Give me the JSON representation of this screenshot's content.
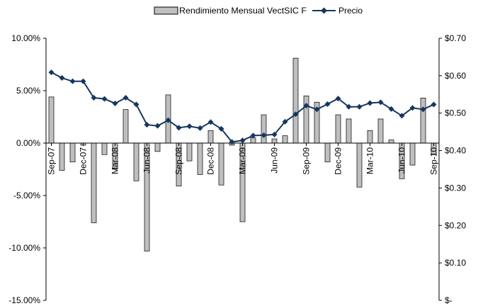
{
  "chart_data": {
    "type": "bar",
    "legend_position": "top",
    "grid": false,
    "categories": [
      "Sep-07",
      "Oct-07",
      "Nov-07",
      "Dec-07",
      "Jan-08",
      "Feb-08",
      "Mar-08",
      "Apr-08",
      "May-08",
      "Jun-08",
      "Jul-08",
      "Aug-08",
      "Sep-08",
      "Oct-08",
      "Nov-08",
      "Dec-08",
      "Jan-09",
      "Feb-09",
      "Mar-09",
      "Apr-09",
      "May-09",
      "Jun-09",
      "Jul-09",
      "Aug-09",
      "Sep-09",
      "Oct-09",
      "Nov-09",
      "Dec-09",
      "Jan-10",
      "Feb-10",
      "Mar-10",
      "Apr-10",
      "May-10",
      "Jun-10",
      "Jul-10",
      "Aug-10",
      "Sep-10"
    ],
    "x_tick_labels": [
      "Sep-07",
      "Dec-07",
      "Mar-08",
      "Jun-08",
      "Sep-08",
      "Dec-08",
      "Mar-09",
      "Jun-09",
      "Sep-09",
      "Dec-09",
      "Mar-10",
      "Jun-10",
      "Sep-10"
    ],
    "series": [
      {
        "name": "Rendimiento Mensual VectSIC F",
        "kind": "bar",
        "axis": "left",
        "color": "#bfbfbf",
        "values": [
          4.4,
          -2.6,
          -1.8,
          -0.2,
          -7.6,
          -1.1,
          -2.5,
          3.2,
          -3.6,
          -10.3,
          -0.8,
          4.6,
          -4.1,
          -1.7,
          -3.0,
          1.2,
          -4.0,
          -0.2,
          -7.5,
          0.5,
          2.7,
          0.4,
          0.7,
          8.1,
          4.5,
          3.9,
          -1.8,
          2.7,
          2.3,
          -4.2,
          1.2,
          2.3,
          0.3,
          -3.4,
          -2.1,
          4.3,
          -1.1
        ]
      },
      {
        "name": "Precio",
        "kind": "line",
        "axis": "right",
        "color": "#17375e",
        "values": [
          0.609,
          0.594,
          0.585,
          0.585,
          0.541,
          0.538,
          0.526,
          0.541,
          0.523,
          0.469,
          0.466,
          0.481,
          0.461,
          0.465,
          0.46,
          0.476,
          0.458,
          0.423,
          0.427,
          0.44,
          0.441,
          0.443,
          0.477,
          0.497,
          0.52,
          0.51,
          0.524,
          0.539,
          0.517,
          0.517,
          0.527,
          0.529,
          0.511,
          0.493,
          0.514,
          0.51,
          0.523
        ]
      }
    ],
    "y_left": {
      "min": -15,
      "max": 10,
      "ticks": [
        "10.00%",
        "5.00%",
        "0.00%",
        "-5.00%",
        "-10.00%",
        "-15.00%"
      ]
    },
    "y_right": {
      "min": 0,
      "max": 0.7,
      "ticks": [
        "$0.70",
        "$0.60",
        "$0.50",
        "$0.40",
        "$0.30",
        "$0.20",
        "$0.10",
        "$-"
      ]
    }
  }
}
